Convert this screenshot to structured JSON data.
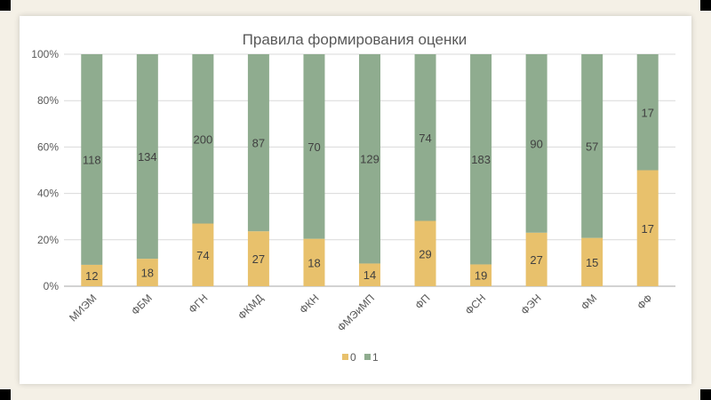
{
  "chart_data": {
    "type": "bar",
    "stacked": "percent",
    "title": "Правила формирования оценки",
    "categories": [
      "МИЭМ",
      "ФБМ",
      "ФГН",
      "ФКМД",
      "ФКН",
      "ФМЭиМП",
      "ФП",
      "ФСН",
      "ФЭН",
      "ФМ",
      "ФФ"
    ],
    "series": [
      {
        "name": "0",
        "color": "#e8c16c",
        "values": [
          12,
          18,
          74,
          27,
          18,
          14,
          29,
          19,
          27,
          15,
          17
        ]
      },
      {
        "name": "1",
        "color": "#8fac8f",
        "values": [
          118,
          134,
          200,
          87,
          70,
          129,
          74,
          183,
          90,
          57,
          17
        ]
      }
    ],
    "yticks": [
      "0%",
      "20%",
      "40%",
      "60%",
      "80%",
      "100%"
    ],
    "ylim": [
      0,
      100
    ],
    "grid": true,
    "legend": "bottom"
  }
}
